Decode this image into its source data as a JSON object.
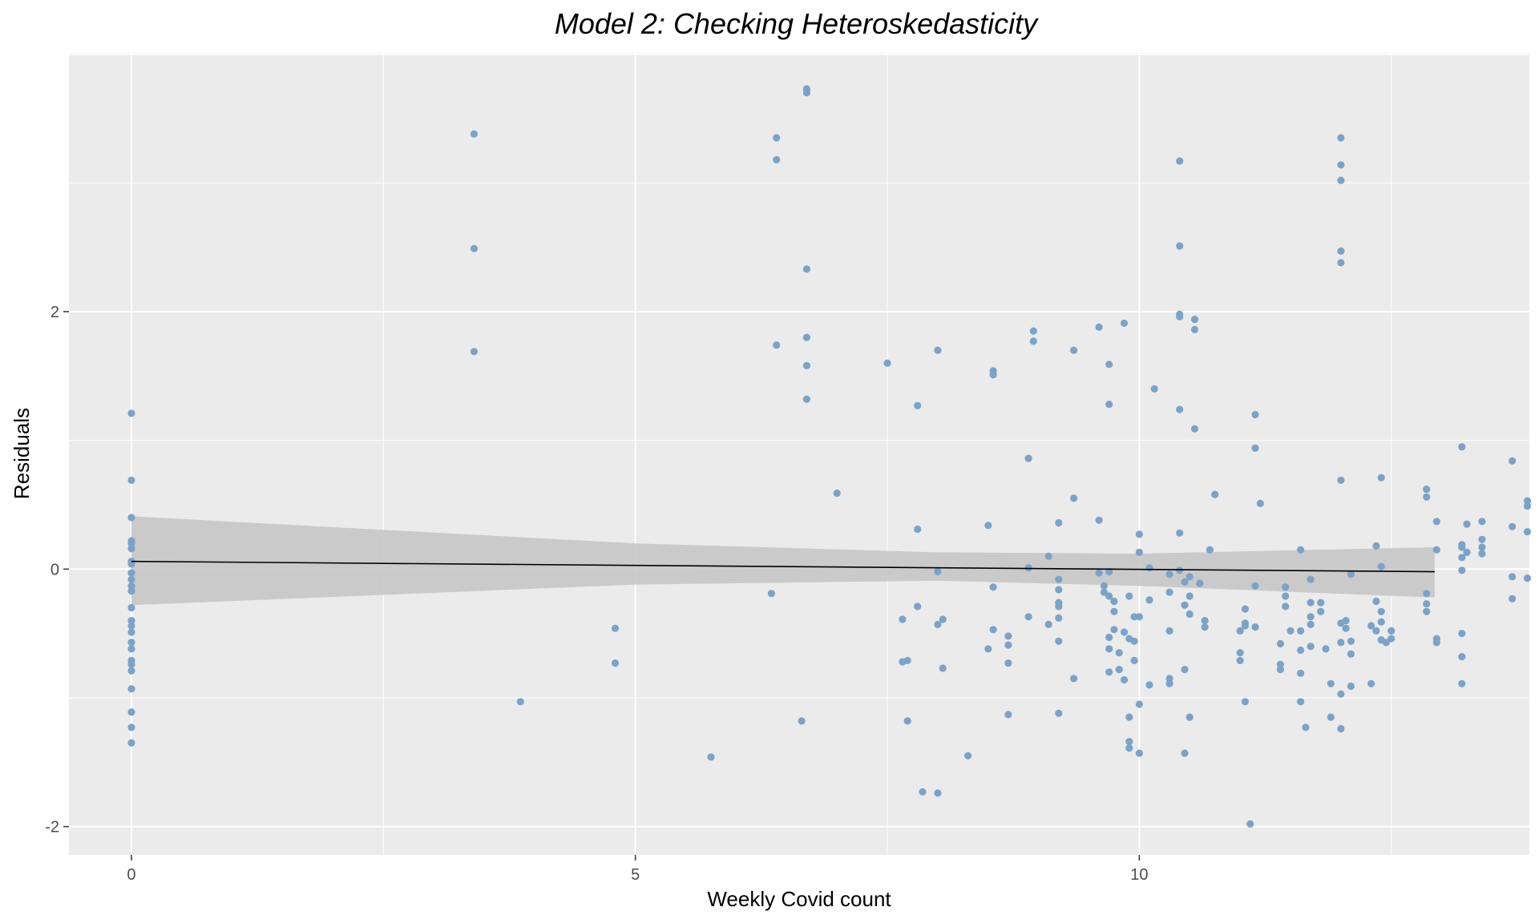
{
  "chart_data": {
    "type": "scatter",
    "title": "Model 2: Checking Heteroskedasticity",
    "xlabel": "Weekly Covid count",
    "ylabel": "Residuals",
    "xlim": [
      -0.62,
      13.87
    ],
    "ylim": [
      -2.22,
      4.01
    ],
    "x_ticks": [
      0,
      5,
      10
    ],
    "x_tick_labels": [
      "0",
      "5",
      "10"
    ],
    "y_ticks": [
      -2,
      0,
      2
    ],
    "y_tick_labels": [
      "-2",
      "0",
      "2"
    ],
    "grid": true,
    "panel_background": "#ebebeb",
    "grid_color": "#ffffff",
    "point_color": "#7ba3c8",
    "fit_line_color": "#000000",
    "confidence_band_color": "#c7c7c7",
    "fit_line": {
      "x": [
        0,
        12.93
      ],
      "y": [
        0.06,
        -0.02
      ]
    },
    "confidence_band": {
      "x": [
        0,
        5,
        8,
        10,
        12.93
      ],
      "lower": [
        -0.28,
        -0.12,
        -0.09,
        -0.13,
        -0.22
      ],
      "upper": [
        0.41,
        0.2,
        0.13,
        0.12,
        0.17
      ]
    },
    "points": [
      [
        0,
        1.21
      ],
      [
        0,
        0.69
      ],
      [
        0,
        0.4
      ],
      [
        0,
        0.2
      ],
      [
        0,
        0.22
      ],
      [
        0,
        0.16
      ],
      [
        0,
        0.06
      ],
      [
        0,
        0.04
      ],
      [
        0,
        -0.03
      ],
      [
        0,
        -0.08
      ],
      [
        0,
        -0.13
      ],
      [
        0,
        -0.17
      ],
      [
        0,
        -0.3
      ],
      [
        0,
        -0.4
      ],
      [
        0,
        -0.44
      ],
      [
        0,
        -0.49
      ],
      [
        0,
        -0.57
      ],
      [
        0,
        -0.62
      ],
      [
        0,
        -0.71
      ],
      [
        0,
        -0.74
      ],
      [
        0,
        -0.79
      ],
      [
        0,
        -0.93
      ],
      [
        0,
        -1.11
      ],
      [
        0,
        -1.23
      ],
      [
        0,
        -1.35
      ],
      [
        3.4,
        3.38
      ],
      [
        3.4,
        2.49
      ],
      [
        3.4,
        1.69
      ],
      [
        3.86,
        -1.03
      ],
      [
        4.8,
        -0.46
      ],
      [
        4.8,
        -0.73
      ],
      [
        5.75,
        -1.46
      ],
      [
        6.4,
        3.35
      ],
      [
        6.4,
        3.18
      ],
      [
        6.4,
        1.74
      ],
      [
        6.35,
        -0.19
      ],
      [
        6.65,
        -1.18
      ],
      [
        6.7,
        3.73
      ],
      [
        6.7,
        3.7
      ],
      [
        6.7,
        2.33
      ],
      [
        6.7,
        1.8
      ],
      [
        6.7,
        1.58
      ],
      [
        6.7,
        1.32
      ],
      [
        7.0,
        0.59
      ],
      [
        7.5,
        1.6
      ],
      [
        7.65,
        -0.39
      ],
      [
        7.65,
        -0.72
      ],
      [
        7.7,
        -0.71
      ],
      [
        7.7,
        -1.18
      ],
      [
        7.8,
        1.27
      ],
      [
        7.8,
        0.31
      ],
      [
        7.8,
        -0.29
      ],
      [
        7.85,
        -1.73
      ],
      [
        8.0,
        1.7
      ],
      [
        8.0,
        -0.02
      ],
      [
        8.0,
        -0.43
      ],
      [
        8.05,
        -0.39
      ],
      [
        8.05,
        -0.77
      ],
      [
        8.0,
        -1.74
      ],
      [
        8.3,
        -1.45
      ],
      [
        8.5,
        0.34
      ],
      [
        8.55,
        1.54
      ],
      [
        8.55,
        1.51
      ],
      [
        8.55,
        -0.14
      ],
      [
        8.55,
        -0.47
      ],
      [
        8.5,
        -0.62
      ],
      [
        8.7,
        -0.52
      ],
      [
        8.7,
        -0.59
      ],
      [
        8.7,
        -0.73
      ],
      [
        8.7,
        -1.13
      ],
      [
        8.9,
        0.86
      ],
      [
        8.95,
        1.85
      ],
      [
        8.95,
        1.77
      ],
      [
        8.9,
        0.01
      ],
      [
        8.9,
        -0.37
      ],
      [
        9.1,
        0.1
      ],
      [
        9.1,
        -0.43
      ],
      [
        9.2,
        0.36
      ],
      [
        9.2,
        -0.08
      ],
      [
        9.2,
        -0.16
      ],
      [
        9.2,
        -0.26
      ],
      [
        9.2,
        -0.29
      ],
      [
        9.2,
        -0.38
      ],
      [
        9.2,
        -0.56
      ],
      [
        9.2,
        -1.12
      ],
      [
        9.35,
        1.7
      ],
      [
        9.35,
        0.55
      ],
      [
        9.35,
        -0.85
      ],
      [
        9.6,
        1.88
      ],
      [
        9.6,
        0.38
      ],
      [
        9.6,
        -0.03
      ],
      [
        9.65,
        -0.13
      ],
      [
        9.65,
        -0.18
      ],
      [
        9.7,
        1.59
      ],
      [
        9.7,
        1.28
      ],
      [
        9.7,
        -0.02
      ],
      [
        9.7,
        -0.21
      ],
      [
        9.7,
        -0.53
      ],
      [
        9.7,
        -0.62
      ],
      [
        9.7,
        -0.8
      ],
      [
        9.75,
        -0.25
      ],
      [
        9.75,
        -0.33
      ],
      [
        9.75,
        -0.47
      ],
      [
        9.8,
        -0.65
      ],
      [
        9.8,
        -0.78
      ],
      [
        9.85,
        1.91
      ],
      [
        9.85,
        -0.49
      ],
      [
        9.85,
        -0.86
      ],
      [
        9.9,
        -0.21
      ],
      [
        9.9,
        -0.54
      ],
      [
        9.9,
        -1.15
      ],
      [
        9.9,
        -1.34
      ],
      [
        9.9,
        -1.39
      ],
      [
        9.95,
        -0.37
      ],
      [
        9.95,
        -0.56
      ],
      [
        9.95,
        -0.71
      ],
      [
        10.0,
        0.27
      ],
      [
        10.0,
        0.13
      ],
      [
        10.0,
        -0.37
      ],
      [
        10.0,
        -1.05
      ],
      [
        10.0,
        -1.43
      ],
      [
        10.1,
        0.01
      ],
      [
        10.1,
        -0.24
      ],
      [
        10.1,
        -0.9
      ],
      [
        10.15,
        1.4
      ],
      [
        10.3,
        -0.04
      ],
      [
        10.3,
        -0.18
      ],
      [
        10.3,
        -0.48
      ],
      [
        10.3,
        -0.85
      ],
      [
        10.3,
        -0.89
      ],
      [
        10.4,
        3.17
      ],
      [
        10.4,
        2.51
      ],
      [
        10.4,
        1.98
      ],
      [
        10.4,
        1.96
      ],
      [
        10.4,
        1.24
      ],
      [
        10.4,
        0.28
      ],
      [
        10.4,
        -0.01
      ],
      [
        10.45,
        -0.1
      ],
      [
        10.45,
        -0.28
      ],
      [
        10.45,
        -0.78
      ],
      [
        10.45,
        -1.43
      ],
      [
        10.5,
        -0.06
      ],
      [
        10.5,
        -0.21
      ],
      [
        10.5,
        -0.35
      ],
      [
        10.5,
        -1.15
      ],
      [
        10.55,
        1.94
      ],
      [
        10.55,
        1.86
      ],
      [
        10.55,
        1.09
      ],
      [
        10.6,
        -0.11
      ],
      [
        10.65,
        -0.4
      ],
      [
        10.65,
        -0.45
      ],
      [
        10.7,
        0.15
      ],
      [
        10.75,
        0.58
      ],
      [
        11.0,
        -0.48
      ],
      [
        11.0,
        -0.65
      ],
      [
        11.0,
        -0.71
      ],
      [
        11.05,
        -0.31
      ],
      [
        11.05,
        -0.42
      ],
      [
        11.05,
        -0.44
      ],
      [
        11.05,
        -1.03
      ],
      [
        11.1,
        -1.98
      ],
      [
        11.15,
        1.2
      ],
      [
        11.15,
        0.94
      ],
      [
        11.15,
        -0.13
      ],
      [
        11.15,
        -0.45
      ],
      [
        11.2,
        0.51
      ],
      [
        11.4,
        -0.58
      ],
      [
        11.4,
        -0.74
      ],
      [
        11.4,
        -0.78
      ],
      [
        11.45,
        -0.14
      ],
      [
        11.45,
        -0.21
      ],
      [
        11.45,
        -0.29
      ],
      [
        11.5,
        -0.48
      ],
      [
        11.6,
        0.15
      ],
      [
        11.6,
        -0.48
      ],
      [
        11.6,
        -0.63
      ],
      [
        11.6,
        -0.81
      ],
      [
        11.6,
        -1.03
      ],
      [
        11.65,
        -1.23
      ],
      [
        11.7,
        -0.08
      ],
      [
        11.7,
        -0.26
      ],
      [
        11.7,
        -0.37
      ],
      [
        11.7,
        -0.43
      ],
      [
        11.7,
        -0.6
      ],
      [
        11.8,
        -0.26
      ],
      [
        11.8,
        -0.33
      ],
      [
        11.85,
        -0.62
      ],
      [
        11.9,
        -0.89
      ],
      [
        11.9,
        -1.15
      ],
      [
        12.0,
        3.35
      ],
      [
        12.0,
        3.14
      ],
      [
        12.0,
        3.02
      ],
      [
        12.0,
        2.47
      ],
      [
        12.0,
        2.38
      ],
      [
        12.0,
        0.69
      ],
      [
        12.0,
        -0.42
      ],
      [
        12.0,
        -0.57
      ],
      [
        12.0,
        -0.97
      ],
      [
        12.0,
        -1.24
      ],
      [
        12.05,
        -0.4
      ],
      [
        12.05,
        -0.46
      ],
      [
        12.1,
        -0.04
      ],
      [
        12.1,
        -0.56
      ],
      [
        12.1,
        -0.66
      ],
      [
        12.1,
        -0.91
      ],
      [
        12.3,
        -0.89
      ],
      [
        12.3,
        -0.44
      ],
      [
        12.35,
        0.18
      ],
      [
        12.35,
        -0.25
      ],
      [
        12.35,
        -0.48
      ],
      [
        12.4,
        0.71
      ],
      [
        12.4,
        0.02
      ],
      [
        12.4,
        -0.33
      ],
      [
        12.4,
        -0.41
      ],
      [
        12.4,
        -0.55
      ],
      [
        12.45,
        -0.57
      ],
      [
        12.5,
        -0.48
      ],
      [
        12.5,
        -0.54
      ],
      [
        12.85,
        0.62
      ],
      [
        12.85,
        0.56
      ],
      [
        12.85,
        -0.19
      ],
      [
        12.85,
        -0.27
      ],
      [
        12.85,
        -0.33
      ],
      [
        12.95,
        0.37
      ],
      [
        12.95,
        0.15
      ],
      [
        12.95,
        -0.54
      ],
      [
        12.95,
        -0.57
      ],
      [
        13.2,
        0.95
      ],
      [
        13.2,
        0.19
      ],
      [
        13.2,
        0.17
      ],
      [
        13.2,
        0.09
      ],
      [
        13.2,
        -0.01
      ],
      [
        13.2,
        -0.5
      ],
      [
        13.2,
        -0.68
      ],
      [
        13.2,
        -0.89
      ],
      [
        13.25,
        0.35
      ],
      [
        13.25,
        0.13
      ],
      [
        13.4,
        0.37
      ],
      [
        13.4,
        0.23
      ],
      [
        13.4,
        0.17
      ],
      [
        13.4,
        0.12
      ],
      [
        13.7,
        0.84
      ],
      [
        13.7,
        0.33
      ],
      [
        13.7,
        -0.06
      ],
      [
        13.7,
        -0.23
      ],
      [
        13.85,
        0.53
      ],
      [
        13.85,
        0.49
      ],
      [
        13.85,
        0.29
      ],
      [
        13.85,
        -0.07
      ]
    ]
  }
}
